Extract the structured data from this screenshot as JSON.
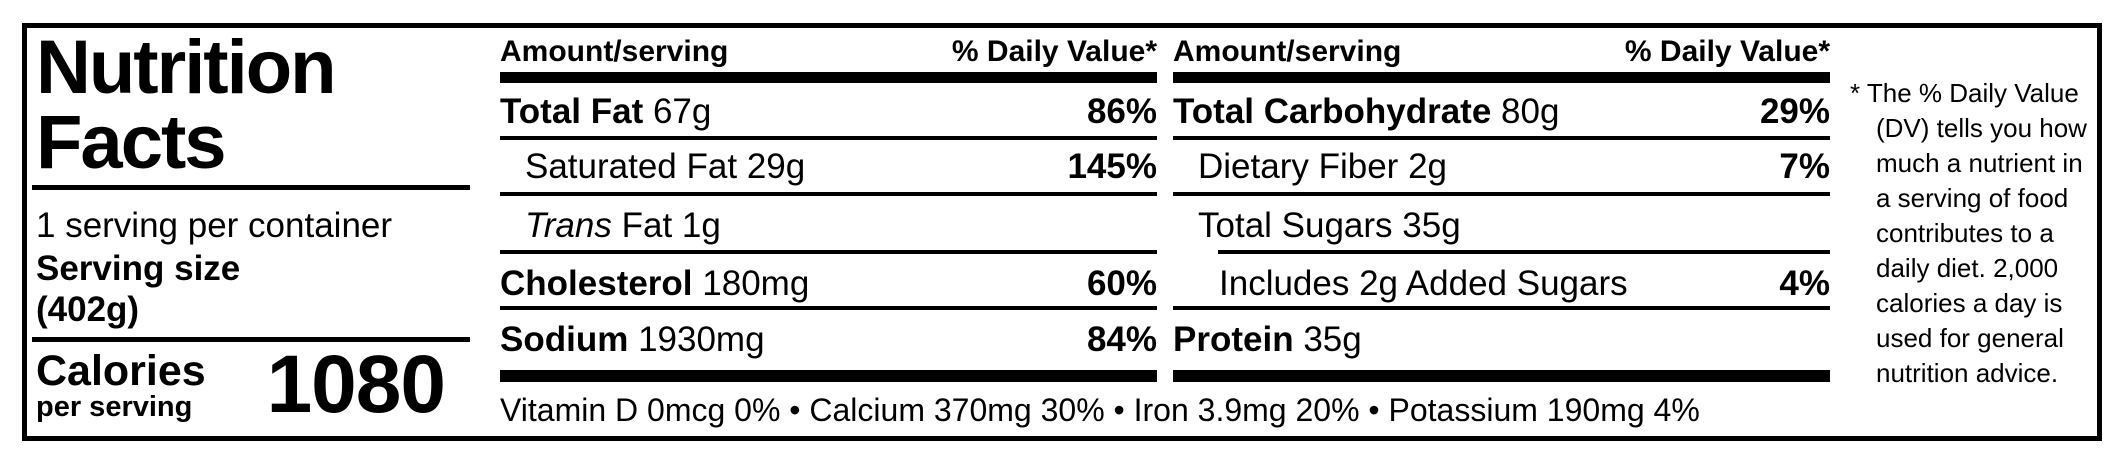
{
  "label": {
    "title": "Nutrition Facts",
    "servings_per_container": "1 serving per container",
    "serving_size_label": "Serving size",
    "serving_size_value": "(402g)",
    "calories_label": "Calories",
    "calories_sublabel": "per serving",
    "calories_value": "1080",
    "column_header": {
      "amount": "Amount/serving",
      "daily_value": "% Daily Value*"
    },
    "columns": [
      {
        "rows": [
          {
            "name": "Total Fat",
            "amount": "67g",
            "dv": "86%"
          },
          {
            "name": "Saturated Fat",
            "amount": "29g",
            "dv": "145%"
          },
          {
            "name_italic": "Trans",
            "name": "Fat",
            "amount": "1g",
            "dv": ""
          },
          {
            "name": "Cholesterol",
            "amount": "180mg",
            "dv": "60%"
          },
          {
            "name": "Sodium",
            "amount": "1930mg",
            "dv": "84%"
          }
        ]
      },
      {
        "rows": [
          {
            "name": "Total Carbohydrate",
            "amount": "80g",
            "dv": "29%"
          },
          {
            "name": "Dietary Fiber",
            "amount": "2g",
            "dv": "7%"
          },
          {
            "name": "Total Sugars",
            "amount": "35g",
            "dv": ""
          },
          {
            "name": "Includes 2g Added Sugars",
            "amount": "",
            "dv": "4%"
          },
          {
            "name": "Protein",
            "amount": "35g",
            "dv": ""
          }
        ]
      }
    ],
    "vitamins_line": "Vitamin D 0mcg 0% • Calcium 370mg 30% • Iron 3.9mg 20% • Potassium 190mg 4%",
    "footnote_lines": [
      "* The % Daily Value",
      "(DV) tells you how",
      "much a nutrient in",
      "a serving of food",
      "contributes to a",
      "daily diet. 2,000",
      "calories a day is",
      "used for general",
      "nutrition advice."
    ],
    "colors": {
      "foreground": "#000000",
      "background": "#ffffff"
    }
  }
}
